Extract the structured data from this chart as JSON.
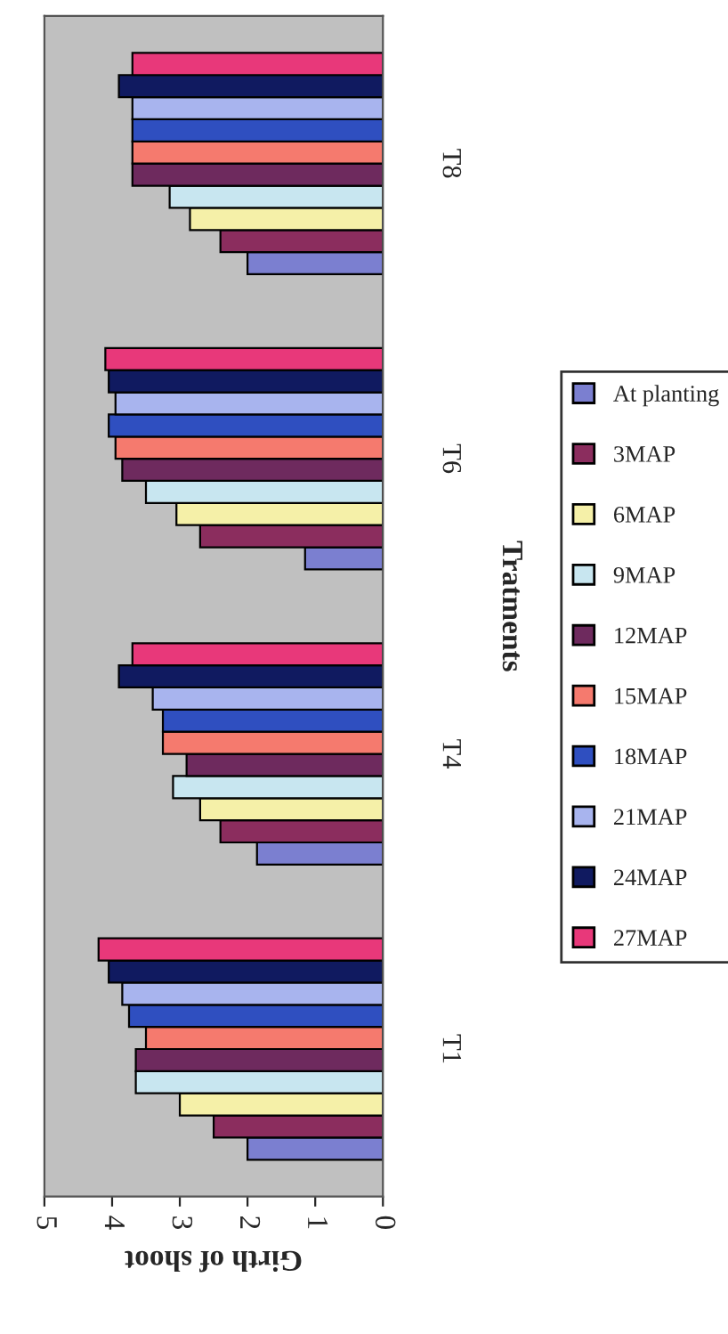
{
  "chart_data": {
    "type": "bar",
    "orientation": "horizontal",
    "xlabel": "Girth of shoot",
    "ylabel": "Tratments",
    "categories": [
      "T8",
      "T6",
      "T4",
      "T1"
    ],
    "series": [
      {
        "name": "At planting",
        "color": "#7b7fd0",
        "values": [
          2.0,
          1.15,
          1.86,
          2.0
        ]
      },
      {
        "name": "3MAP",
        "color": "#8b2d5e",
        "values": [
          2.4,
          2.7,
          2.4,
          2.5
        ]
      },
      {
        "name": "6MAP",
        "color": "#f5f0a8",
        "values": [
          2.85,
          3.05,
          2.7,
          3.0
        ]
      },
      {
        "name": "9MAP",
        "color": "#c8e6f0",
        "values": [
          3.15,
          3.5,
          3.1,
          3.65
        ]
      },
      {
        "name": "12MAP",
        "color": "#6e2a5e",
        "values": [
          3.7,
          3.85,
          2.9,
          3.65
        ]
      },
      {
        "name": "15MAP",
        "color": "#f57a6e",
        "values": [
          3.7,
          3.95,
          3.25,
          3.5
        ]
      },
      {
        "name": "18MAP",
        "color": "#2f4fc0",
        "values": [
          3.7,
          4.05,
          3.25,
          3.75
        ]
      },
      {
        "name": "21MAP",
        "color": "#a8b4ee",
        "values": [
          3.7,
          3.95,
          3.4,
          3.85
        ]
      },
      {
        "name": "24MAP",
        "color": "#101a60",
        "values": [
          3.9,
          4.05,
          3.9,
          4.05
        ]
      },
      {
        "name": "27MAP",
        "color": "#e8387a",
        "values": [
          3.7,
          4.1,
          3.7,
          4.2
        ]
      }
    ],
    "xlim": [
      5,
      0
    ],
    "xticks": [
      5,
      4,
      3,
      2,
      1,
      0
    ],
    "grid": false,
    "legend": "right"
  }
}
